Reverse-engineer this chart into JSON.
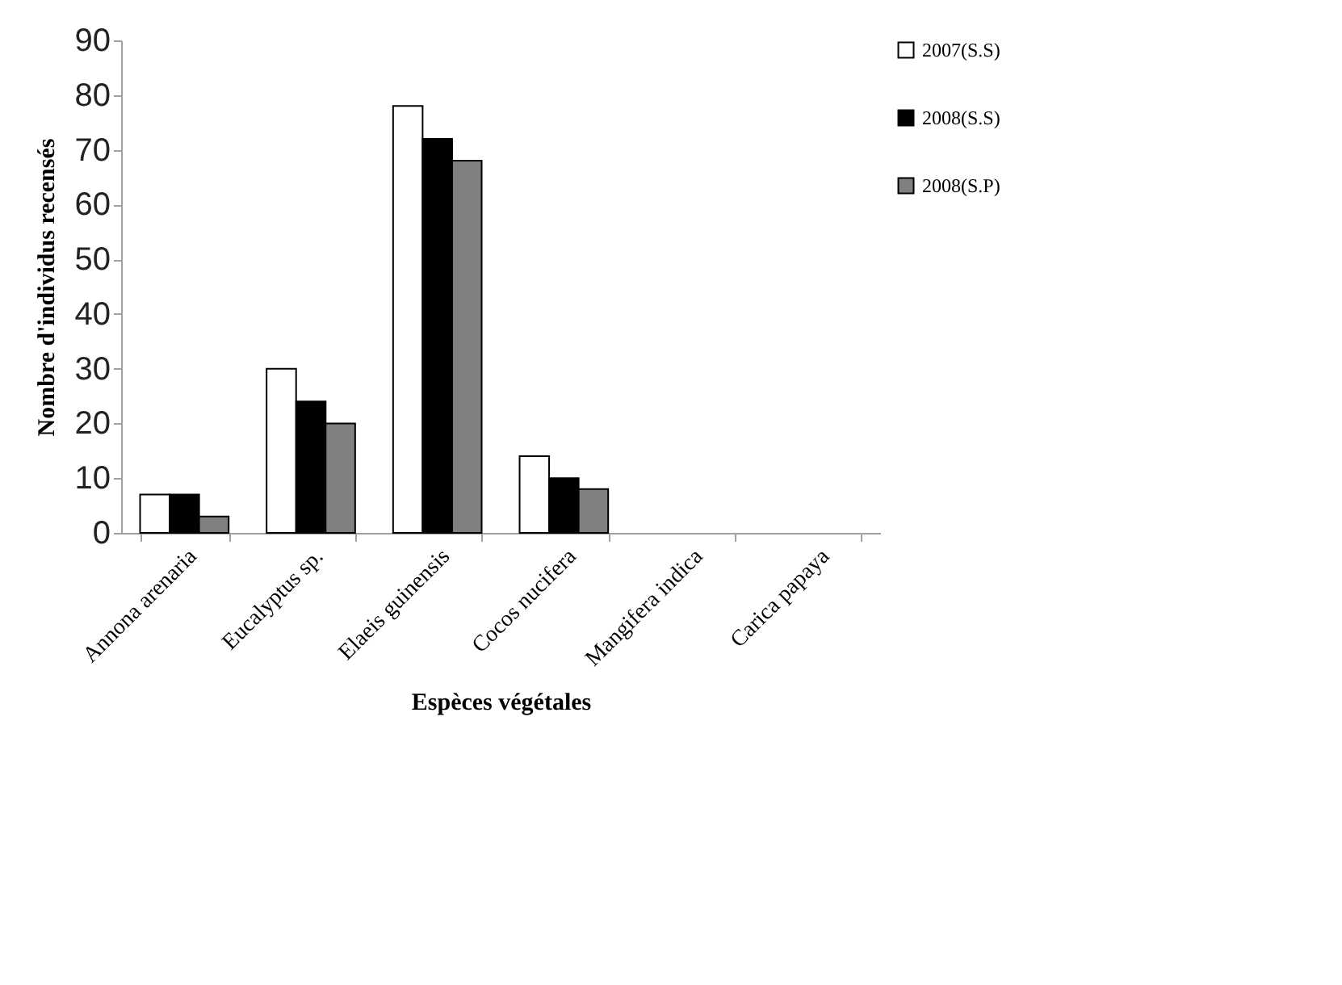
{
  "chart_data": {
    "type": "bar",
    "xlabel": "Espèces végétales",
    "ylabel": "Nombre d'individus recensés",
    "categories": [
      "Annona arenaria",
      "Eucalyptus sp.",
      "Elaeis guinensis",
      "Cocos nucifera",
      "Mangifera indica",
      "Carica papaya"
    ],
    "series": [
      {
        "name": "2007(S.S)",
        "color": "#ffffff",
        "values": [
          7,
          30,
          78,
          14,
          0,
          0
        ]
      },
      {
        "name": "2008(S.S)",
        "color": "#000000",
        "values": [
          7,
          24,
          72,
          10,
          0,
          0
        ]
      },
      {
        "name": "2008(S.P)",
        "color": "#808080",
        "values": [
          3,
          20,
          68,
          8,
          0,
          0
        ]
      }
    ],
    "ylim": [
      0,
      90
    ],
    "yticks": [
      0,
      10,
      20,
      30,
      40,
      50,
      60,
      70,
      80,
      90
    ],
    "grid": false,
    "legend": "top right"
  }
}
